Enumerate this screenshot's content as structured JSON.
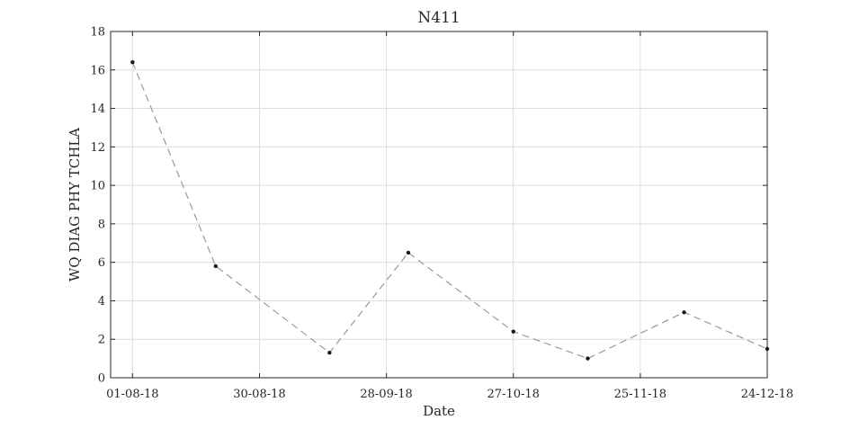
{
  "chart_data": {
    "type": "line",
    "title": "N411",
    "xlabel": "Date",
    "ylabel": "WQ DIAG PHY TCHLA",
    "x_axis": {
      "type": "date",
      "range": [
        "2018-07-27",
        "2018-12-24"
      ],
      "ticks": [
        {
          "date": "2018-08-01",
          "label": "01-08-18"
        },
        {
          "date": "2018-08-30",
          "label": "30-08-18"
        },
        {
          "date": "2018-09-28",
          "label": "28-09-18"
        },
        {
          "date": "2018-10-27",
          "label": "27-10-18"
        },
        {
          "date": "2018-11-25",
          "label": "25-11-18"
        },
        {
          "date": "2018-12-24",
          "label": "24-12-18"
        }
      ]
    },
    "y_axis": {
      "range": [
        0,
        18
      ],
      "ticks": [
        0,
        2,
        4,
        6,
        8,
        10,
        12,
        14,
        16,
        18
      ]
    },
    "grid": true,
    "series": [
      {
        "color": "#999999",
        "line_style": "dashed",
        "marker_color": "#1a1a1a",
        "points": [
          {
            "x": "2018-08-01",
            "y": 16.4
          },
          {
            "x": "2018-08-20",
            "y": 5.8
          },
          {
            "x": "2018-09-15",
            "y": 1.3
          },
          {
            "x": "2018-10-03",
            "y": 6.5
          },
          {
            "x": "2018-10-27",
            "y": 2.4
          },
          {
            "x": "2018-11-13",
            "y": 1.0
          },
          {
            "x": "2018-12-05",
            "y": 3.4
          },
          {
            "x": "2018-12-24",
            "y": 1.5
          }
        ]
      }
    ]
  }
}
